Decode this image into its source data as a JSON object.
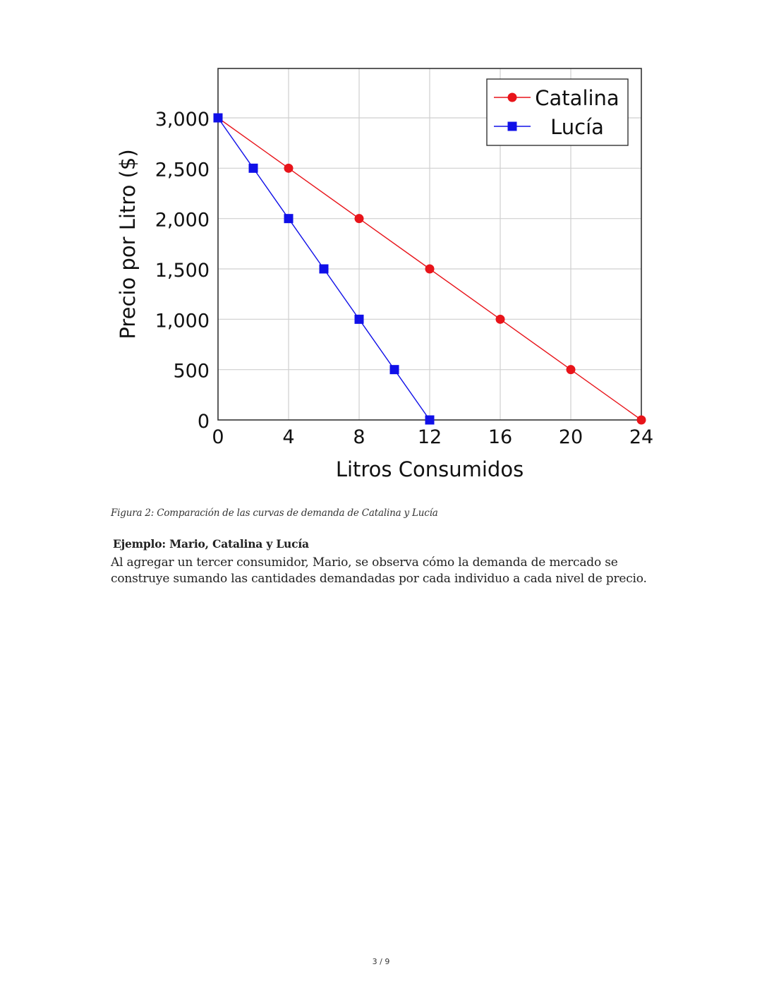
{
  "chart_data": {
    "type": "line",
    "title": "",
    "xlabel": "Litros Consumidos",
    "ylabel": "Precio por Litro ($)",
    "xlim": [
      0,
      24
    ],
    "ylim": [
      0,
      3490
    ],
    "x_ticks": [
      0,
      4,
      8,
      12,
      16,
      20,
      24
    ],
    "y_ticks": [
      0,
      500,
      1000,
      1500,
      2000,
      2500,
      3000
    ],
    "y_tick_labels": [
      "0",
      "500",
      "1,000",
      "1,500",
      "2,000",
      "2,500",
      "3,000"
    ],
    "grid": true,
    "legend_position": "upper right",
    "series": [
      {
        "name": "Catalina",
        "color": "#e8141a",
        "marker": "circle",
        "x": [
          0,
          4,
          8,
          12,
          16,
          20,
          24
        ],
        "y": [
          3000,
          2500,
          2000,
          1500,
          1000,
          500,
          0
        ]
      },
      {
        "name": "Lucía",
        "color": "#1010e8",
        "marker": "square",
        "x": [
          0,
          2,
          4,
          6,
          8,
          10,
          12
        ],
        "y": [
          3000,
          2500,
          2000,
          1500,
          1000,
          500,
          0
        ]
      }
    ]
  },
  "document": {
    "figure_caption": "Figura 2: Comparación de las curvas de demanda de Catalina y Lucía",
    "section_heading": "Ejemplo: Mario, Catalina y Lucía",
    "paragraph": "Al agregar un tercer consumidor, Mario, se observa cómo la demanda de mercado se construye sumando las cantidades demandadas por cada individuo a cada nivel de precio.",
    "page_indicator": "3 / 9"
  }
}
